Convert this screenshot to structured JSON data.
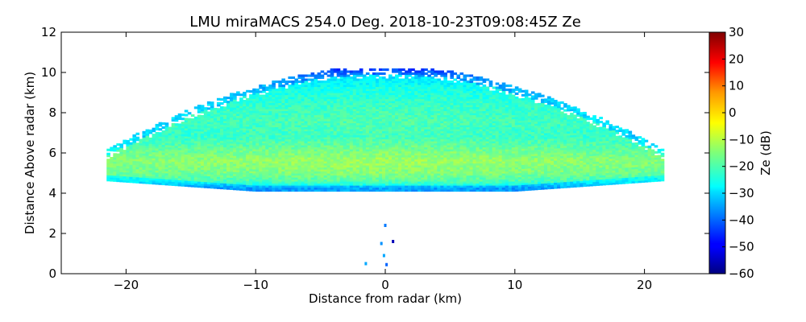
{
  "chart_data": {
    "type": "heatmap",
    "title": "LMU miraMACS 254.0 Deg. 2018-10-23T09:08:45Z  Ze",
    "xlabel": "Distance from radar (km)",
    "ylabel": "Distance Above radar  (km)",
    "xlim": [
      -25,
      25
    ],
    "ylim": [
      0,
      12
    ],
    "xticks": [
      -20,
      -10,
      0,
      10,
      20
    ],
    "xtick_labels": [
      "−20",
      "−10",
      "0",
      "10",
      "20"
    ],
    "yticks": [
      0,
      2,
      4,
      6,
      8,
      10,
      12
    ],
    "ytick_labels": [
      "0",
      "2",
      "4",
      "6",
      "8",
      "10",
      "12"
    ],
    "colorbar": {
      "label": "Ze (dB)",
      "range": [
        -60,
        30
      ],
      "ticks": [
        -60,
        -50,
        -40,
        -30,
        -20,
        -10,
        0,
        10,
        20,
        30
      ],
      "tick_labels": [
        "−60",
        "−50",
        "−40",
        "−30",
        "−20",
        "−10",
        "0",
        "10",
        "20",
        "30"
      ],
      "colormap": "jet"
    },
    "echo_region": {
      "description": "RHI scan of a stratiform cloud layer",
      "x_range_km": [
        -21.5,
        21.5
      ],
      "cloud_base_km": 4.1,
      "cloud_top_center_km": 10.2,
      "cloud_top_edge_km": 6.4,
      "layers": [
        {
          "height_km": 4.2,
          "ze_db": -28
        },
        {
          "height_km": 4.6,
          "ze_db": -18
        },
        {
          "height_km": 5.0,
          "ze_db": -14
        },
        {
          "height_km": 5.6,
          "ze_db": -12
        },
        {
          "height_km": 6.2,
          "ze_db": -16
        },
        {
          "height_km": 6.8,
          "ze_db": -20
        },
        {
          "height_km": 7.6,
          "ze_db": -19
        },
        {
          "height_km": 8.4,
          "ze_db": -21
        },
        {
          "height_km": 9.2,
          "ze_db": -24
        },
        {
          "height_km": 9.8,
          "ze_db": -29
        },
        {
          "height_km": 10.1,
          "ze_db": -35
        }
      ],
      "near_radar_clutter": [
        {
          "x_km": 0.0,
          "y_km": 2.4,
          "ze_db": -38
        },
        {
          "x_km": -0.3,
          "y_km": 1.5,
          "ze_db": -36
        },
        {
          "x_km": 0.6,
          "y_km": 1.6,
          "ze_db": -55
        },
        {
          "x_km": -0.1,
          "y_km": 0.9,
          "ze_db": -34
        },
        {
          "x_km": 0.1,
          "y_km": 0.45,
          "ze_db": -40
        },
        {
          "x_km": -1.5,
          "y_km": 0.5,
          "ze_db": -34
        }
      ]
    }
  }
}
